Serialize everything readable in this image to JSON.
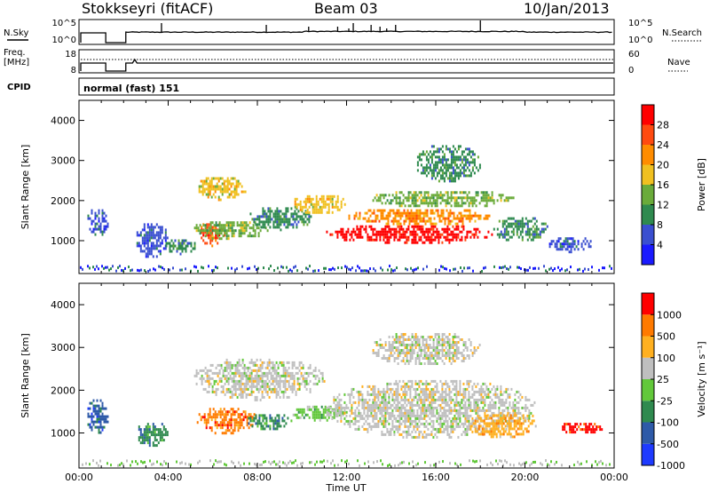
{
  "header": {
    "title": "Stokkseyri (fitACF)",
    "beam": "Beam 03",
    "date": "10/Jan/2013"
  },
  "top_panels": {
    "nsky_label": "N.Sky",
    "nsky_ticks": [
      "10^5",
      "10^0"
    ],
    "nsearch_label": "N.Search",
    "nsearch_ticks": [
      "10^5",
      "10^0"
    ],
    "freq_label": "Freq.",
    "freq_unit": "[MHz]",
    "freq_ticks": [
      "18",
      "8"
    ],
    "nave_label": "Nave",
    "nave_ticks": [
      "60",
      "0"
    ],
    "cpid_label": "CPID",
    "cpid_text": "normal (fast) 151"
  },
  "chart_data": [
    {
      "type": "heatmap",
      "name": "power",
      "xlabel": "",
      "ylabel": "Slant Range [km]",
      "xlim": [
        0,
        24
      ],
      "ylim": [
        180,
        4500
      ],
      "yticks": [
        "1000",
        "2000",
        "3000",
        "4000"
      ],
      "colorbar": {
        "label": "Power [dB]",
        "ticks": [
          "4",
          "8",
          "12",
          "16",
          "20",
          "24",
          "28"
        ],
        "range": [
          0,
          32
        ],
        "colors": [
          "#1a1aff",
          "#3a4fd0",
          "#2f8a4f",
          "#6aab3a",
          "#f0c020",
          "#ff8c00",
          "#ff4a10",
          "#ff0000"
        ]
      },
      "bands": [
        {
          "t0": 0.3,
          "t1": 1.3,
          "r0": 1150,
          "r1": 1850,
          "c": 1
        },
        {
          "t0": 2.5,
          "t1": 4.0,
          "r0": 600,
          "r1": 1500,
          "c": 1
        },
        {
          "t0": 3.8,
          "t1": 5.2,
          "r0": 700,
          "r1": 1100,
          "c": 2
        },
        {
          "t0": 5.3,
          "t1": 6.5,
          "r0": 900,
          "r1": 1500,
          "c": 6
        },
        {
          "t0": 5.0,
          "t1": 8.5,
          "r0": 1050,
          "r1": 1550,
          "c": 3
        },
        {
          "t0": 5.2,
          "t1": 7.5,
          "r0": 2050,
          "r1": 2650,
          "c": 4
        },
        {
          "t0": 7.5,
          "t1": 10.5,
          "r0": 1300,
          "r1": 1900,
          "c": 2
        },
        {
          "t0": 9.5,
          "t1": 12.0,
          "r0": 1700,
          "r1": 2200,
          "c": 4
        },
        {
          "t0": 11.0,
          "t1": 18.5,
          "r0": 950,
          "r1": 1450,
          "c": 7
        },
        {
          "t0": 12.0,
          "t1": 18.5,
          "r0": 1400,
          "r1": 1850,
          "c": 5
        },
        {
          "t0": 13.0,
          "t1": 19.5,
          "r0": 1850,
          "r1": 2300,
          "c": 3
        },
        {
          "t0": 15.0,
          "t1": 18.0,
          "r0": 2500,
          "r1": 3450,
          "c": 2
        },
        {
          "t0": 18.5,
          "t1": 21.0,
          "r0": 1000,
          "r1": 1650,
          "c": 2
        },
        {
          "t0": 21.0,
          "t1": 23.0,
          "r0": 750,
          "r1": 1150,
          "c": 1
        }
      ]
    },
    {
      "type": "heatmap",
      "name": "velocity",
      "xlabel": "Time UT",
      "ylabel": "Slant Range [km]",
      "xlim": [
        0,
        24
      ],
      "ylim": [
        180,
        4500
      ],
      "xticks": [
        "00:00",
        "04:00",
        "08:00",
        "12:00",
        "16:00",
        "20:00",
        "00:00"
      ],
      "yticks": [
        "1000",
        "2000",
        "3000",
        "4000"
      ],
      "colorbar": {
        "label": "Velocity [m s⁻¹]",
        "ticks": [
          "1000",
          "500",
          "100",
          "25",
          "-25",
          "-100",
          "-500",
          "-1000"
        ],
        "colors": [
          "#1e3aff",
          "#2e5aa8",
          "#2f8a4f",
          "#62c83a",
          "#bfbfbf",
          "#ffb020",
          "#ff7a00",
          "#ff0000"
        ]
      },
      "bands": [
        {
          "t0": 0.3,
          "t1": 1.3,
          "r0": 1000,
          "r1": 1850,
          "c": 1
        },
        {
          "t0": 2.5,
          "t1": 4.0,
          "r0": 700,
          "r1": 1300,
          "c": 2
        },
        {
          "t0": 5.2,
          "t1": 8.0,
          "r0": 1000,
          "r1": 1650,
          "c": 6
        },
        {
          "t0": 7.5,
          "t1": 9.5,
          "r0": 1100,
          "r1": 1500,
          "c": 2
        },
        {
          "t0": 5.0,
          "t1": 11.0,
          "r0": 1800,
          "r1": 2800,
          "c": 4
        },
        {
          "t0": 9.5,
          "t1": 12.0,
          "r0": 1300,
          "r1": 1700,
          "c": 3
        },
        {
          "t0": 11.0,
          "t1": 20.5,
          "r0": 900,
          "r1": 2300,
          "c": 4
        },
        {
          "t0": 13.0,
          "t1": 18.0,
          "r0": 2600,
          "r1": 3400,
          "c": 4
        },
        {
          "t0": 17.5,
          "t1": 20.5,
          "r0": 900,
          "r1": 1500,
          "c": 5
        },
        {
          "t0": 21.5,
          "t1": 23.5,
          "r0": 1000,
          "r1": 1300,
          "c": 7
        }
      ]
    }
  ]
}
